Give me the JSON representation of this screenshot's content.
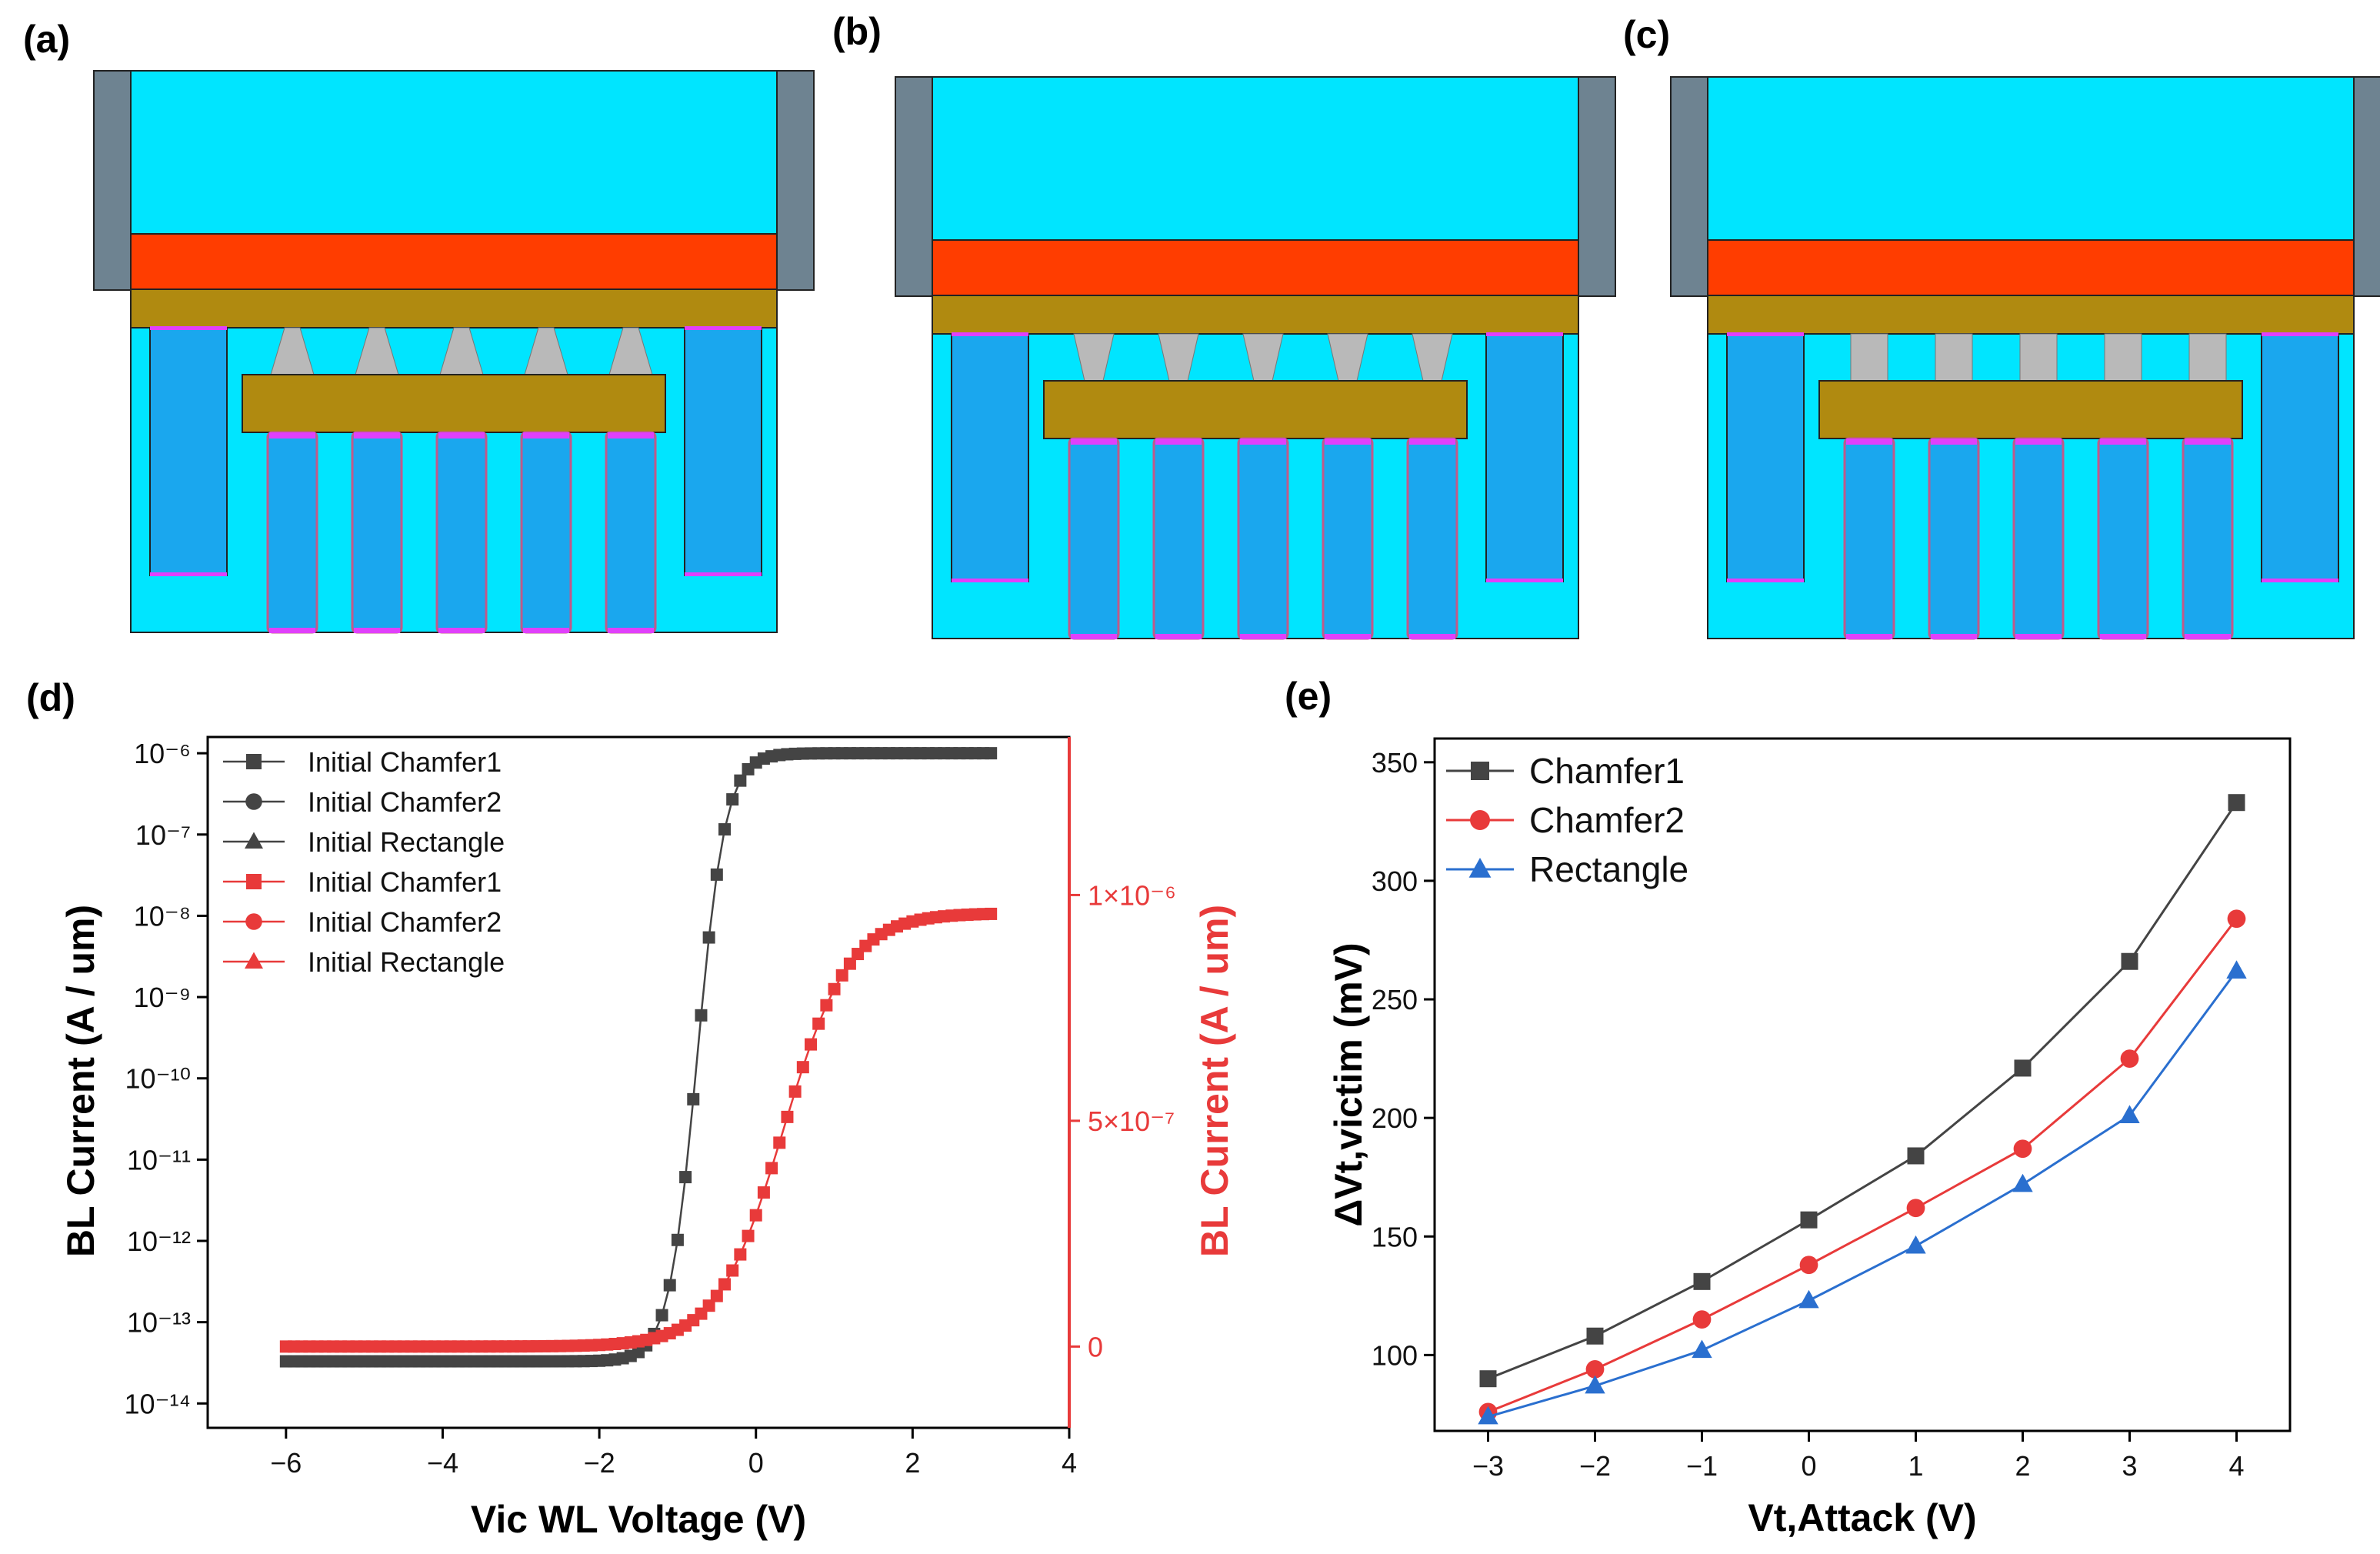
{
  "panels": {
    "a": "(a)",
    "b": "(b)",
    "c": "(c)",
    "d": "(d)",
    "e": "(e)"
  },
  "structures": [
    {
      "id": "a",
      "contact_shape": "chamfer1"
    },
    {
      "id": "b",
      "contact_shape": "chamfer2"
    },
    {
      "id": "c",
      "contact_shape": "rectangle"
    }
  ],
  "colors": {
    "oxide": "#00e5ff",
    "gate": "#ff3d00",
    "poly": "#b08a10",
    "spacer": "#6e8391",
    "contact": "#b9b9b9",
    "body": "#1aa7ee",
    "liner": "#e040fb",
    "gray_series": "#444444",
    "red_series": "#e83a3a",
    "blue_series": "#2a6fcf"
  },
  "chart_data": [
    {
      "type": "line",
      "panel": "d",
      "xlabel": "Vic WL Voltage (V)",
      "ylabel": "BL Current (A / um)",
      "y2label": "BL Current (A / um)",
      "xlim": [
        -7,
        4
      ],
      "xticks": [
        -6,
        -4,
        -2,
        0,
        2,
        4
      ],
      "xtick_labels": [
        "−6",
        "−4",
        "−2",
        "0",
        "2",
        "4"
      ],
      "yscale": "log",
      "ylim_log10": [
        -14.3,
        -5.8
      ],
      "yticks_log10": [
        -14,
        -13,
        -12,
        -11,
        -10,
        -9,
        -8,
        -7,
        -6
      ],
      "ytick_labels": [
        "10⁻¹⁴",
        "10⁻¹³",
        "10⁻¹²",
        "10⁻¹¹",
        "10⁻¹⁰",
        "10⁻⁹",
        "10⁻⁸",
        "10⁻⁷",
        "10⁻⁶"
      ],
      "y2lim": [
        -1.8e-07,
        1.35e-06
      ],
      "y2ticks": [
        0,
        5e-07,
        1e-06
      ],
      "y2tick_labels": [
        "0",
        "5×10⁻⁷",
        "1×10⁻⁶"
      ],
      "log_model": {
        "floor": 3.3e-14,
        "sat": 1e-06,
        "v_half": -0.75,
        "slope": 0.18,
        "x_start": -6,
        "x_end": 3,
        "step": 0.1
      },
      "linear_model": {
        "floor": 0,
        "sat": 9.6e-07,
        "v_half": 0.35,
        "slope": 0.42,
        "x_start": -6,
        "x_end": 3,
        "step": 0.1
      },
      "legend": [
        {
          "label": "Initial Chamfer1",
          "marker": "square",
          "color": "gray"
        },
        {
          "label": "Initial Chamfer2",
          "marker": "circle",
          "color": "gray"
        },
        {
          "label": "Initial Rectangle",
          "marker": "triangle",
          "color": "gray"
        },
        {
          "label": "Initial Chamfer1",
          "marker": "square",
          "color": "red"
        },
        {
          "label": "Initial Chamfer2",
          "marker": "circle",
          "color": "red"
        },
        {
          "label": "Initial Rectangle",
          "marker": "triangle",
          "color": "red"
        }
      ],
      "legend_position": "top-left"
    },
    {
      "type": "line",
      "panel": "e",
      "xlabel": "Vt,Attack (V)",
      "ylabel": "ΔVt,victim (mV)",
      "xlim": [
        -3.5,
        4.5
      ],
      "ylim": [
        68,
        360
      ],
      "xticks": [
        -3,
        -2,
        -1,
        0,
        1,
        2,
        3,
        4
      ],
      "xtick_labels": [
        "−3",
        "−2",
        "−1",
        "0",
        "1",
        "2",
        "3",
        "4"
      ],
      "yticks": [
        100,
        150,
        200,
        250,
        300,
        350
      ],
      "ytick_labels": [
        "100",
        "150",
        "200",
        "250",
        "300",
        "350"
      ],
      "x": [
        -3,
        -2,
        -1,
        0,
        1,
        2,
        3,
        4
      ],
      "series": [
        {
          "name": "Chamfer1",
          "marker": "square",
          "color": "gray",
          "values": [
            90,
            108,
            131,
            157,
            184,
            221,
            266,
            333
          ]
        },
        {
          "name": "Chamfer2",
          "marker": "circle",
          "color": "red",
          "values": [
            76,
            94,
            115,
            138,
            162,
            187,
            225,
            284
          ]
        },
        {
          "name": "Rectangle",
          "marker": "triangle",
          "color": "blue",
          "values": [
            74,
            87,
            102,
            123,
            146,
            172,
            201,
            262
          ]
        }
      ],
      "legend_position": "top-left"
    }
  ]
}
